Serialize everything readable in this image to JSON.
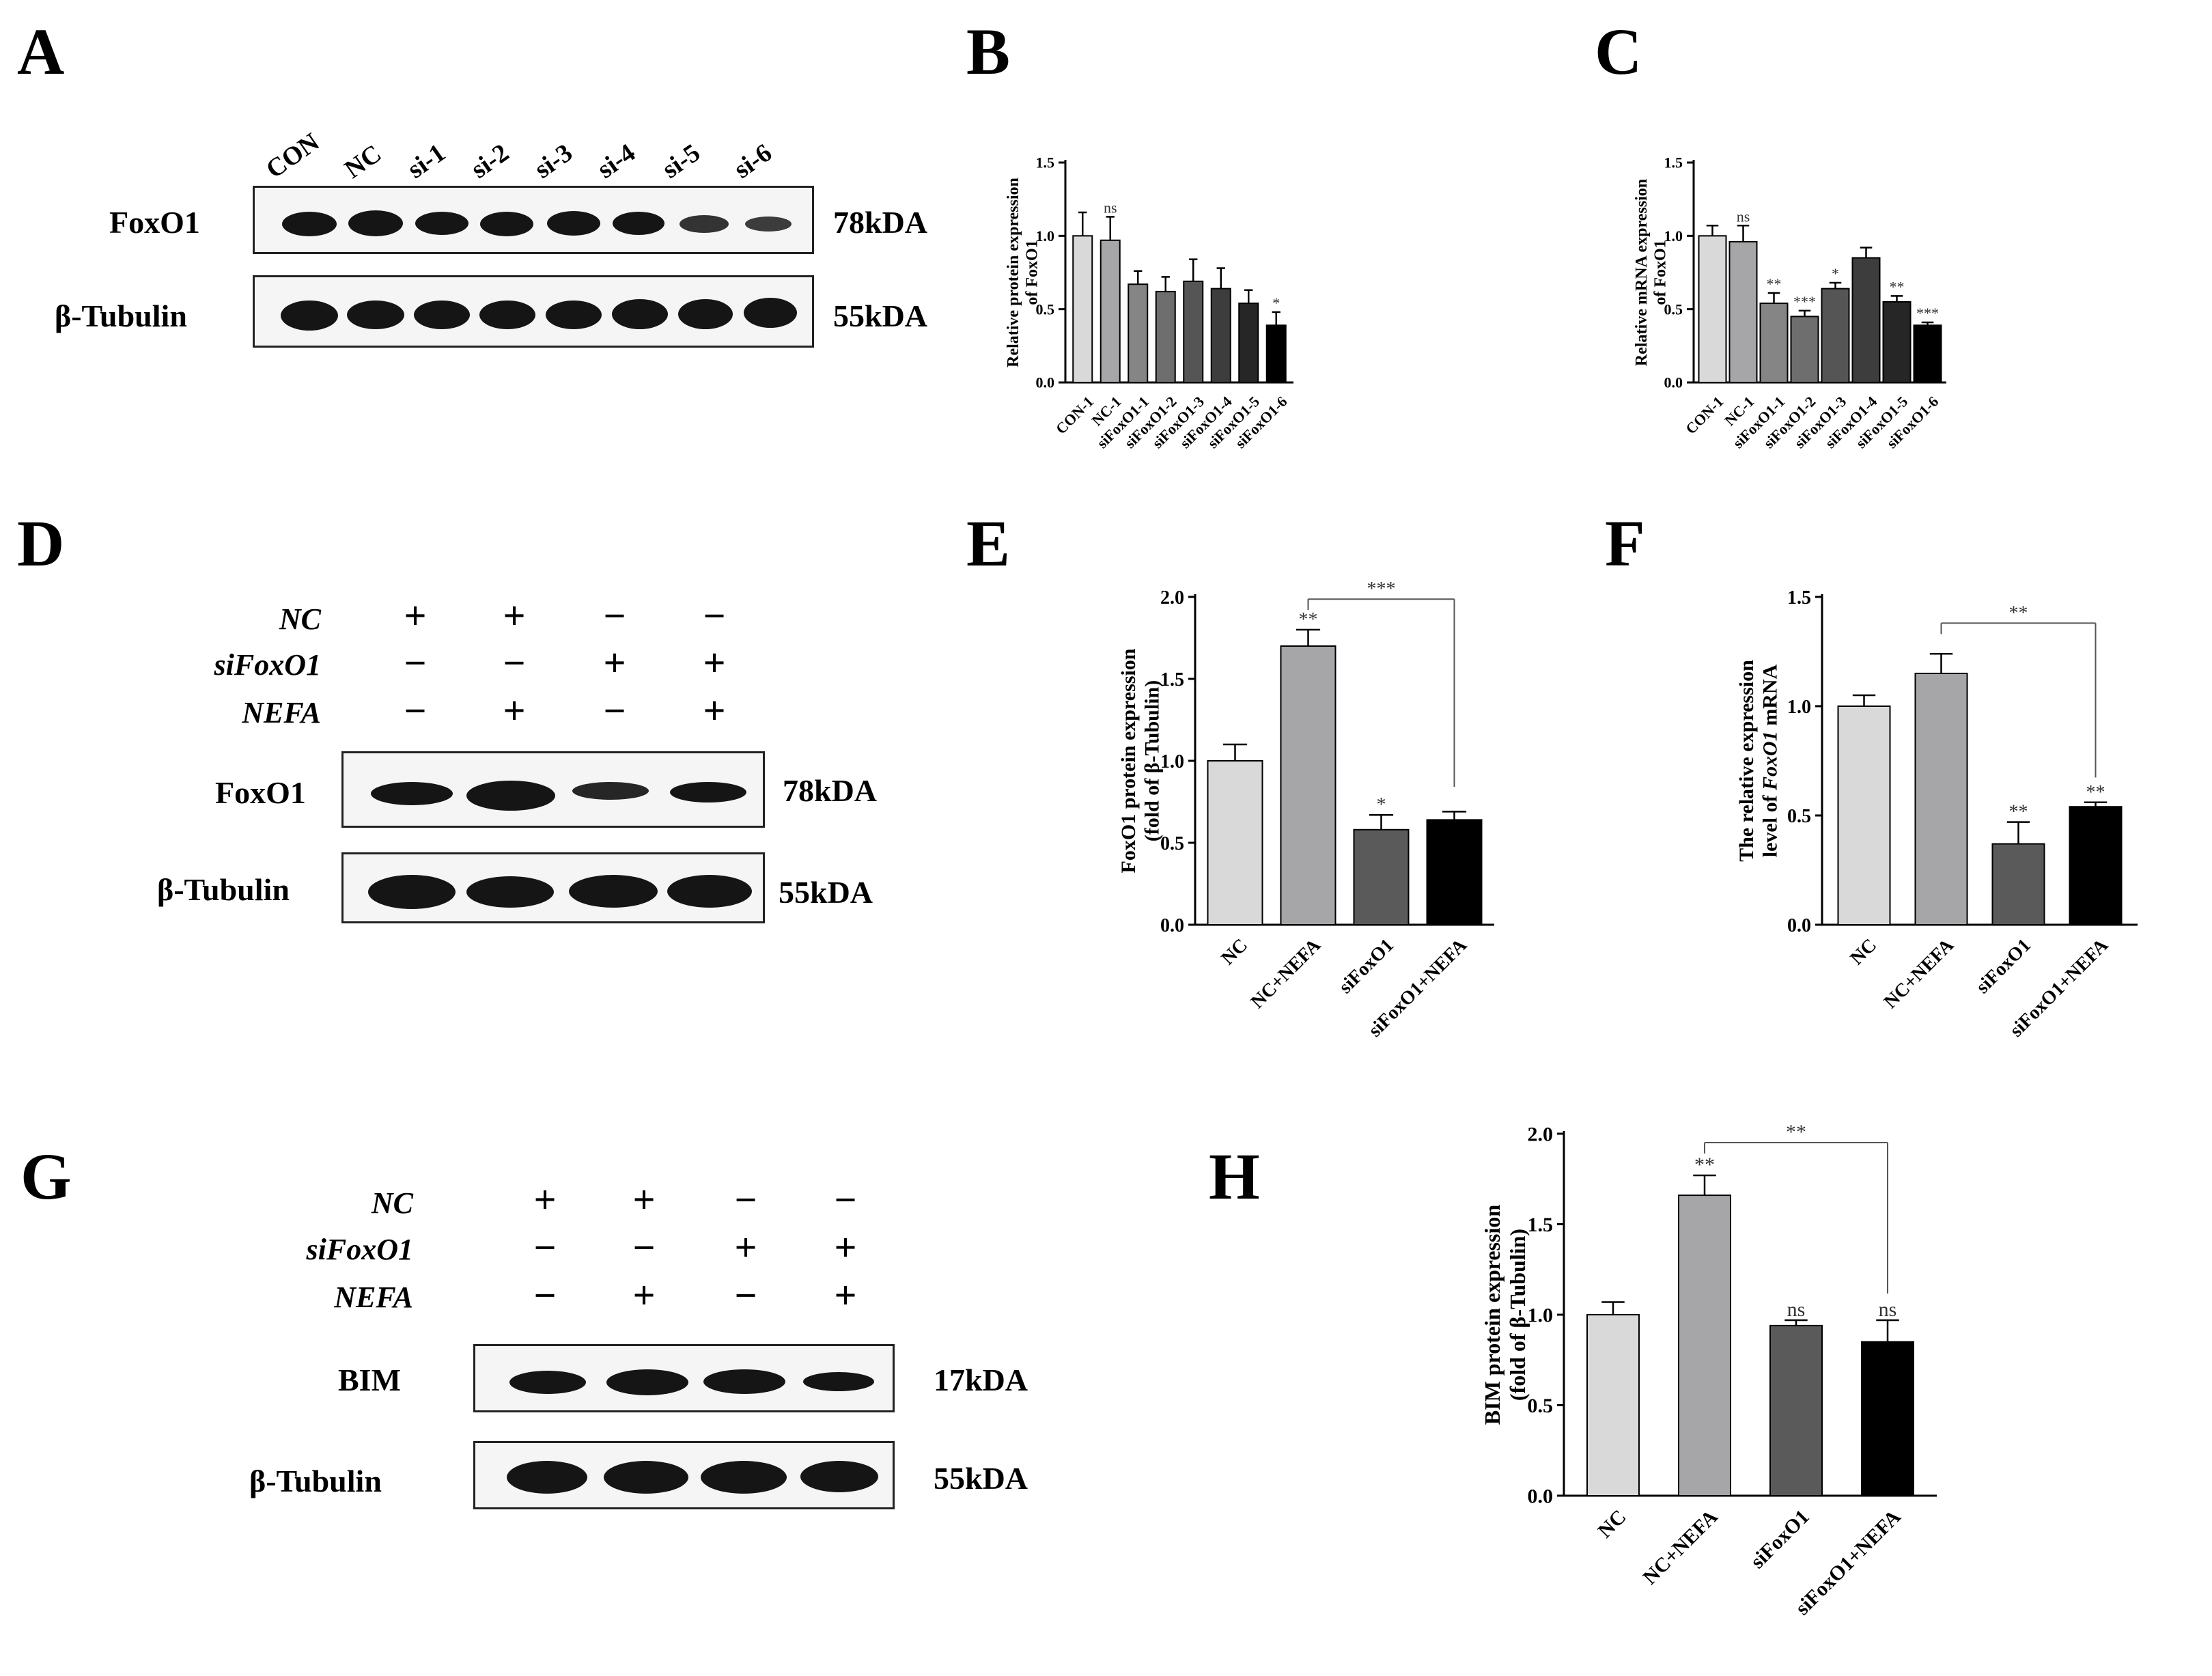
{
  "panel_letters": {
    "A": "A",
    "B": "B",
    "C": "C",
    "D": "D",
    "E": "E",
    "F": "F",
    "G": "G",
    "H": "H"
  },
  "panelA": {
    "lanes": [
      "CON",
      "NC",
      "si-1",
      "si-2",
      "si-3",
      "si-4",
      "si-5",
      "si-6"
    ],
    "rows": [
      {
        "label": "FoxO1",
        "kda": "78kDA"
      },
      {
        "label": "β-Tubulin",
        "kda": "55kDA"
      }
    ]
  },
  "panelD": {
    "conditions": [
      {
        "name": "NC",
        "signs": [
          "+",
          "+",
          "−",
          "−"
        ]
      },
      {
        "name": "siFoxO1",
        "signs": [
          "−",
          "−",
          "+",
          "+"
        ]
      },
      {
        "name": "NEFA",
        "signs": [
          "−",
          "+",
          "−",
          "+"
        ]
      }
    ],
    "rows": [
      {
        "label": "FoxO1",
        "kda": "78kDA"
      },
      {
        "label": "β-Tubulin",
        "kda": "55kDA"
      }
    ]
  },
  "panelG": {
    "conditions": [
      {
        "name": "NC",
        "signs": [
          "+",
          "+",
          "−",
          "−"
        ]
      },
      {
        "name": "siFoxO1",
        "signs": [
          "−",
          "−",
          "+",
          "+"
        ]
      },
      {
        "name": "NEFA",
        "signs": [
          "−",
          "+",
          "−",
          "+"
        ]
      }
    ],
    "rows": [
      {
        "label": "BIM",
        "kda": "17kDA"
      },
      {
        "label": "β-Tubulin",
        "kda": "55kDA"
      }
    ]
  },
  "chart_data": [
    {
      "panel": "B",
      "type": "bar",
      "categories": [
        "CON-1",
        "NC-1",
        "siFoxO1-1",
        "siFoxO1-2",
        "siFoxO1-3",
        "siFoxO1-4",
        "siFoxO1-5",
        "siFoxO1-6"
      ],
      "values": [
        1.0,
        0.97,
        0.67,
        0.62,
        0.69,
        0.64,
        0.54,
        0.39
      ],
      "errors": [
        0.16,
        0.16,
        0.09,
        0.1,
        0.15,
        0.14,
        0.09,
        0.09
      ],
      "annotations": [
        "",
        "ns",
        "",
        "",
        "",
        "",
        "",
        "*"
      ],
      "ylabel": "Relative protein expression of FoxO1",
      "ylim": [
        0,
        1.5
      ],
      "yticks": [
        "0.0",
        "0.5",
        "1.0",
        "1.5"
      ],
      "colors": [
        "#d9d9d9",
        "#a6a6a8",
        "#858585",
        "#6e6e6e",
        "#555555",
        "#3d3d3d",
        "#262626",
        "#000000"
      ]
    },
    {
      "panel": "C",
      "type": "bar",
      "categories": [
        "CON-1",
        "NC-1",
        "siFoxO1-1",
        "siFoxO1-2",
        "siFoxO1-3",
        "siFoxO1-4",
        "siFoxO1-5",
        "siFoxO1-6"
      ],
      "values": [
        1.0,
        0.96,
        0.54,
        0.45,
        0.64,
        0.85,
        0.55,
        0.39
      ],
      "errors": [
        0.07,
        0.11,
        0.07,
        0.04,
        0.04,
        0.07,
        0.04,
        0.02
      ],
      "annotations": [
        "",
        "ns",
        "**",
        "***",
        "*",
        "",
        "**",
        "***"
      ],
      "ylabel": "Relative mRNA expression of FoxO1",
      "ylim": [
        0,
        1.5
      ],
      "yticks": [
        "0.0",
        "0.5",
        "1.0",
        "1.5"
      ],
      "colors": [
        "#d9d9d9",
        "#a6a6a8",
        "#858585",
        "#6e6e6e",
        "#555555",
        "#3d3d3d",
        "#262626",
        "#000000"
      ]
    },
    {
      "panel": "E",
      "type": "bar",
      "categories": [
        "NC",
        "NC+NEFA",
        "siFoxO1",
        "siFoxO1+NEFA"
      ],
      "values": [
        1.0,
        1.7,
        0.58,
        0.64
      ],
      "errors": [
        0.1,
        0.1,
        0.09,
        0.05
      ],
      "annotations": [
        "",
        "**",
        "*",
        ""
      ],
      "bracket": {
        "from": 1,
        "to": 3,
        "label": "***"
      },
      "ylabel": "FoxO1 protein expression (fold of β-Tubulin)",
      "ylim": [
        0,
        2.0
      ],
      "yticks": [
        "0.0",
        "0.5",
        "1.0",
        "1.5",
        "2.0"
      ],
      "colors": [
        "#d9d9d9",
        "#a6a6a8",
        "#5a5a5a",
        "#000000"
      ]
    },
    {
      "panel": "F",
      "type": "bar",
      "categories": [
        "NC",
        "NC+NEFA",
        "siFoxO1",
        "siFoxO1+NEFA"
      ],
      "values": [
        1.0,
        1.15,
        0.37,
        0.54
      ],
      "errors": [
        0.05,
        0.09,
        0.1,
        0.02
      ],
      "annotations": [
        "",
        "",
        "**",
        "**"
      ],
      "bracket": {
        "from": 1,
        "to": 3,
        "label": "**"
      },
      "ylabel_line1": "The relative expression",
      "ylabel_line2_prefix": "level of ",
      "ylabel_line2_italic": "FoxO1",
      "ylabel_line2_suffix": " mRNA",
      "ylim": [
        0,
        1.5
      ],
      "yticks": [
        "0.0",
        "0.5",
        "1.0",
        "1.5"
      ],
      "colors": [
        "#d9d9d9",
        "#a6a6a8",
        "#5a5a5a",
        "#000000"
      ]
    },
    {
      "panel": "H",
      "type": "bar",
      "categories": [
        "NC",
        "NC+NEFA",
        "siFoxO1",
        "siFoxO1+NEFA"
      ],
      "values": [
        1.0,
        1.66,
        0.94,
        0.85
      ],
      "errors": [
        0.07,
        0.11,
        0.03,
        0.12
      ],
      "annotations": [
        "",
        "**",
        "ns",
        "ns"
      ],
      "bracket": {
        "from": 1,
        "to": 3,
        "label": "**"
      },
      "ylabel": "BIM protein expression (fold of β-Tubulin)",
      "ylim": [
        0,
        2.0
      ],
      "yticks": [
        "0.0",
        "0.5",
        "1.0",
        "1.5",
        "2.0"
      ],
      "colors": [
        "#d9d9d9",
        "#a6a6a8",
        "#5a5a5a",
        "#000000"
      ]
    }
  ]
}
